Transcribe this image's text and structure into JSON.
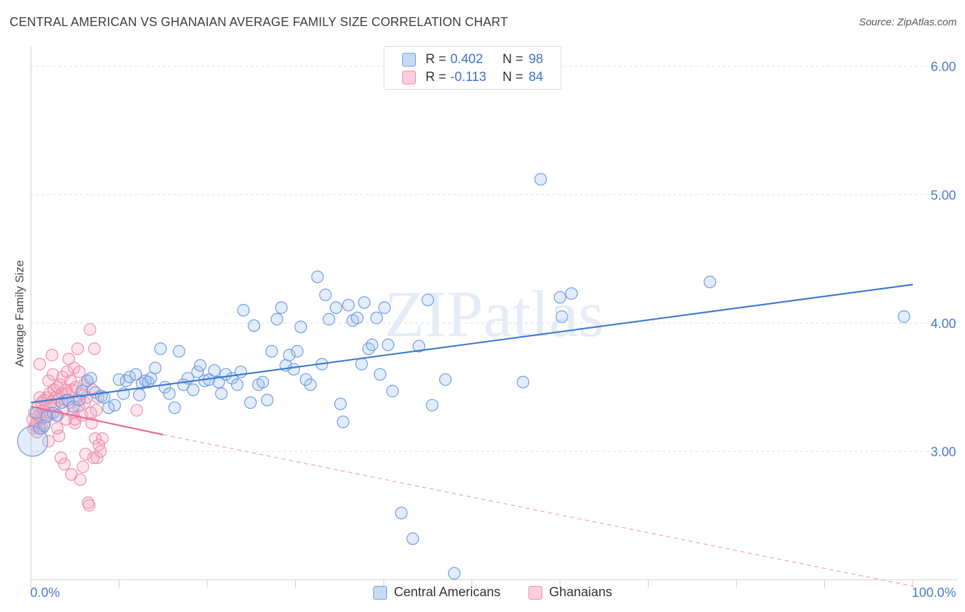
{
  "title": "CENTRAL AMERICAN VS GHANAIAN AVERAGE FAMILY SIZE CORRELATION CHART",
  "source": "Source: ZipAtlas.com",
  "watermark": "ZIPatlas",
  "legend": {
    "rows": [
      {
        "r_label": "R =",
        "r_value": "0.402",
        "n_label": "N =",
        "n_value": "98",
        "color": "#a8c6ef"
      },
      {
        "r_label": "R =",
        "r_value": "-0.113",
        "n_label": "N =",
        "n_value": "84",
        "color": "#f4b3c8"
      }
    ]
  },
  "bottom_legend": [
    "Central Americans",
    "Ghanaians"
  ],
  "chart_data": {
    "type": "scatter",
    "title": "CENTRAL AMERICAN VS GHANAIAN AVERAGE FAMILY SIZE CORRELATION CHART",
    "xlabel": "",
    "ylabel": "Average Family Size",
    "xlim": [
      0,
      100
    ],
    "ylim": [
      2.0,
      6.1
    ],
    "x_tick_labels": [
      "0.0%",
      "100.0%"
    ],
    "y_ticks": [
      3.0,
      4.0,
      5.0,
      6.0
    ],
    "y_tick_labels": [
      "3.00",
      "4.00",
      "5.00",
      "6.00"
    ],
    "grid": true,
    "legend_position": "top-center",
    "colors": {
      "central_americans": "#3a78d0",
      "ghanaians": "#e8678f",
      "tick_label": "#4a7cc8"
    },
    "series": [
      {
        "name": "Central Americans",
        "color": "#3a78d0",
        "trend": {
          "x": [
            0,
            100
          ],
          "y": [
            3.38,
            4.3
          ]
        },
        "points": [
          [
            0.2,
            3.08
          ],
          [
            1.0,
            3.18
          ],
          [
            1.5,
            3.2
          ],
          [
            1.8,
            3.27
          ],
          [
            2.5,
            3.3
          ],
          [
            3.0,
            3.28
          ],
          [
            3.5,
            3.38
          ],
          [
            4.2,
            3.4
          ],
          [
            4.8,
            3.35
          ],
          [
            5.5,
            3.4
          ],
          [
            5.8,
            3.47
          ],
          [
            6.4,
            3.55
          ],
          [
            6.8,
            3.57
          ],
          [
            7.3,
            3.46
          ],
          [
            8.0,
            3.43
          ],
          [
            8.3,
            3.42
          ],
          [
            8.8,
            3.34
          ],
          [
            9.5,
            3.36
          ],
          [
            10.0,
            3.56
          ],
          [
            10.5,
            3.45
          ],
          [
            10.8,
            3.55
          ],
          [
            11.2,
            3.58
          ],
          [
            11.9,
            3.6
          ],
          [
            12.3,
            3.44
          ],
          [
            12.6,
            3.53
          ],
          [
            13.0,
            3.55
          ],
          [
            13.3,
            3.54
          ],
          [
            13.6,
            3.57
          ],
          [
            14.1,
            3.65
          ],
          [
            14.7,
            3.8
          ],
          [
            15.2,
            3.5
          ],
          [
            15.7,
            3.45
          ],
          [
            16.3,
            3.34
          ],
          [
            16.8,
            3.78
          ],
          [
            17.3,
            3.52
          ],
          [
            17.8,
            3.57
          ],
          [
            18.4,
            3.48
          ],
          [
            18.9,
            3.62
          ],
          [
            19.2,
            3.67
          ],
          [
            19.7,
            3.55
          ],
          [
            20.2,
            3.56
          ],
          [
            20.8,
            3.63
          ],
          [
            21.3,
            3.54
          ],
          [
            21.6,
            3.45
          ],
          [
            22.1,
            3.6
          ],
          [
            22.8,
            3.57
          ],
          [
            23.4,
            3.52
          ],
          [
            23.8,
            3.62
          ],
          [
            24.1,
            4.1
          ],
          [
            24.9,
            3.38
          ],
          [
            25.3,
            3.98
          ],
          [
            25.8,
            3.52
          ],
          [
            26.3,
            3.54
          ],
          [
            26.8,
            3.4
          ],
          [
            27.3,
            3.78
          ],
          [
            27.9,
            4.03
          ],
          [
            28.4,
            4.12
          ],
          [
            28.9,
            3.67
          ],
          [
            29.3,
            3.75
          ],
          [
            29.8,
            3.64
          ],
          [
            30.2,
            3.78
          ],
          [
            30.6,
            3.97
          ],
          [
            31.2,
            3.56
          ],
          [
            31.7,
            3.52
          ],
          [
            32.5,
            4.36
          ],
          [
            33.0,
            3.68
          ],
          [
            33.4,
            4.22
          ],
          [
            33.8,
            4.03
          ],
          [
            34.6,
            4.12
          ],
          [
            35.1,
            3.37
          ],
          [
            35.4,
            3.23
          ],
          [
            36.0,
            4.14
          ],
          [
            36.5,
            4.02
          ],
          [
            37.0,
            4.04
          ],
          [
            37.5,
            3.68
          ],
          [
            37.8,
            4.16
          ],
          [
            38.3,
            3.8
          ],
          [
            38.7,
            3.83
          ],
          [
            39.2,
            4.04
          ],
          [
            39.6,
            3.6
          ],
          [
            40.1,
            4.12
          ],
          [
            40.5,
            3.83
          ],
          [
            41.0,
            3.47
          ],
          [
            42.0,
            2.52
          ],
          [
            43.3,
            2.32
          ],
          [
            44.0,
            3.82
          ],
          [
            45.0,
            4.18
          ],
          [
            45.5,
            3.36
          ],
          [
            47.0,
            3.56
          ],
          [
            48.0,
            2.05
          ],
          [
            55.8,
            3.54
          ],
          [
            57.8,
            5.12
          ],
          [
            60.0,
            4.2
          ],
          [
            60.2,
            4.05
          ],
          [
            61.3,
            4.23
          ],
          [
            77.0,
            4.32
          ],
          [
            99.0,
            4.05
          ],
          [
            0.6,
            3.3
          ]
        ]
      },
      {
        "name": "Ghanaians",
        "color": "#e8678f",
        "trend_solid": {
          "x": [
            0,
            15
          ],
          "y": [
            3.35,
            3.13
          ]
        },
        "trend_dashed": {
          "x": [
            15,
            100
          ],
          "y": [
            3.13,
            1.95
          ]
        },
        "points": [
          [
            0.2,
            3.25
          ],
          [
            0.3,
            3.18
          ],
          [
            0.4,
            3.3
          ],
          [
            0.5,
            3.2
          ],
          [
            0.6,
            3.22
          ],
          [
            0.7,
            3.15
          ],
          [
            0.8,
            3.35
          ],
          [
            0.9,
            3.28
          ],
          [
            1.0,
            3.42
          ],
          [
            1.1,
            3.25
          ],
          [
            1.2,
            3.38
          ],
          [
            1.3,
            3.18
          ],
          [
            1.4,
            3.32
          ],
          [
            1.5,
            3.4
          ],
          [
            1.6,
            3.22
          ],
          [
            1.7,
            3.35
          ],
          [
            1.8,
            3.28
          ],
          [
            1.9,
            3.42
          ],
          [
            2.0,
            3.55
          ],
          [
            2.1,
            3.45
          ],
          [
            2.2,
            3.3
          ],
          [
            2.3,
            3.38
          ],
          [
            2.4,
            3.75
          ],
          [
            2.5,
            3.6
          ],
          [
            2.6,
            3.48
          ],
          [
            2.7,
            3.35
          ],
          [
            2.8,
            3.42
          ],
          [
            2.9,
            3.28
          ],
          [
            3.0,
            3.5
          ],
          [
            3.1,
            3.4
          ],
          [
            3.2,
            3.12
          ],
          [
            3.3,
            3.52
          ],
          [
            3.4,
            2.95
          ],
          [
            3.5,
            3.45
          ],
          [
            3.6,
            3.58
          ],
          [
            3.7,
            3.32
          ],
          [
            3.8,
            2.9
          ],
          [
            3.9,
            3.4
          ],
          [
            4.0,
            3.25
          ],
          [
            4.1,
            3.62
          ],
          [
            4.2,
            3.45
          ],
          [
            4.3,
            3.72
          ],
          [
            4.4,
            3.38
          ],
          [
            4.5,
            3.55
          ],
          [
            4.6,
            2.82
          ],
          [
            4.7,
            3.48
          ],
          [
            4.8,
            3.3
          ],
          [
            4.9,
            3.65
          ],
          [
            5.0,
            3.22
          ],
          [
            5.1,
            3.5
          ],
          [
            5.2,
            3.4
          ],
          [
            5.3,
            3.8
          ],
          [
            5.4,
            3.35
          ],
          [
            5.5,
            3.62
          ],
          [
            5.6,
            2.78
          ],
          [
            5.7,
            3.45
          ],
          [
            5.8,
            3.28
          ],
          [
            5.9,
            2.88
          ],
          [
            6.0,
            3.52
          ],
          [
            6.1,
            3.38
          ],
          [
            6.2,
            2.98
          ],
          [
            6.3,
            3.42
          ],
          [
            6.4,
            3.55
          ],
          [
            6.5,
            2.6
          ],
          [
            6.6,
            2.58
          ],
          [
            6.7,
            3.95
          ],
          [
            6.8,
            3.3
          ],
          [
            6.9,
            3.22
          ],
          [
            7.0,
            3.48
          ],
          [
            7.1,
            2.95
          ],
          [
            7.2,
            3.8
          ],
          [
            7.3,
            3.1
          ],
          [
            7.4,
            3.32
          ],
          [
            7.5,
            2.95
          ],
          [
            7.6,
            3.42
          ],
          [
            7.7,
            3.05
          ],
          [
            7.9,
            3.0
          ],
          [
            8.1,
            3.1
          ],
          [
            1.0,
            3.68
          ],
          [
            2.0,
            3.08
          ],
          [
            3.0,
            3.18
          ],
          [
            4.0,
            3.48
          ],
          [
            5.0,
            3.25
          ],
          [
            12.0,
            3.32
          ]
        ]
      }
    ]
  }
}
